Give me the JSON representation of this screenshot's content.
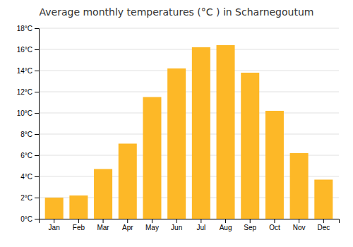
{
  "chart_data": {
    "type": "bar",
    "title": "Average monthly temperatures (°C ) in Scharnegoutum",
    "categories": [
      "Jan",
      "Feb",
      "Mar",
      "Apr",
      "May",
      "Jun",
      "Jul",
      "Aug",
      "Sep",
      "Oct",
      "Nov",
      "Dec"
    ],
    "values": [
      2.0,
      2.2,
      4.7,
      7.1,
      11.5,
      14.2,
      16.2,
      16.4,
      13.8,
      10.2,
      6.2,
      3.7
    ],
    "color": "#FDB827",
    "ylim": [
      0,
      18
    ],
    "yticks": [
      {
        "value": 0,
        "label": "0°C"
      },
      {
        "value": 2,
        "label": "2°C"
      },
      {
        "value": 4,
        "label": "4°C"
      },
      {
        "value": 6,
        "label": "6°C"
      },
      {
        "value": 8,
        "label": "8°C"
      },
      {
        "value": 10,
        "label": "10°C"
      },
      {
        "value": 12,
        "label": "12°C"
      },
      {
        "value": 14,
        "label": "14°C"
      },
      {
        "value": 16,
        "label": "16°C"
      },
      {
        "value": 18,
        "label": "18°C"
      }
    ],
    "grid": true
  }
}
